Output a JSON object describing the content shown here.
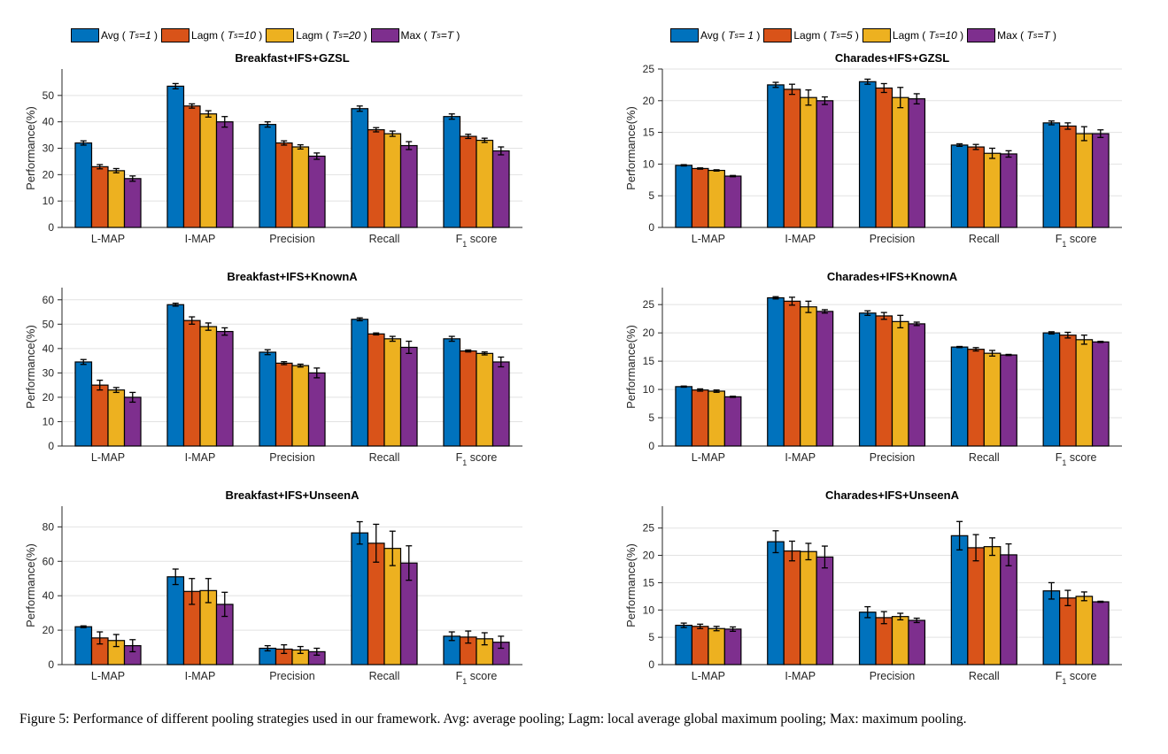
{
  "colors": {
    "avg": "#0072BD",
    "lagm_a": "#D95319",
    "lagm_b": "#EDB120",
    "max": "#7E2F8E"
  },
  "legend_left": {
    "items": [
      {
        "label": "Avg (",
        "sub_var": "T",
        "sub": "s",
        "cond": "=1",
        "close": ")"
      },
      {
        "label": "Lagm (",
        "sub_var": "T",
        "sub": "s",
        "cond": "=10",
        "close": ")"
      },
      {
        "label": "Lagm (",
        "sub_var": "T",
        "sub": "s",
        "cond": "=20",
        "close": ")"
      },
      {
        "label": "Max (",
        "sub_var": "T",
        "sub": "s",
        "cond": "=T",
        "close": ")"
      }
    ]
  },
  "legend_right": {
    "items": [
      {
        "label": "Avg (",
        "sub_var": "T",
        "sub": "s",
        "cond": "= 1",
        "close": ")"
      },
      {
        "label": "Lagm (",
        "sub_var": "T",
        "sub": "s",
        "cond": "=5",
        "close": ")"
      },
      {
        "label": "Lagm (",
        "sub_var": "T",
        "sub": "s",
        "cond": "=10",
        "close": ")"
      },
      {
        "label": "Max (",
        "sub_var": "T",
        "sub": "s",
        "cond": "=T",
        "close": ")"
      }
    ]
  },
  "caption": "Figure 5: Performance of different pooling strategies used in our framework. Avg: average pooling; Lagm: local average global maximum pooling; Max: maximum pooling.",
  "chart_data": [
    {
      "type": "bar",
      "title": "Breakfast+IFS+GZSL",
      "ylabel": "Performance(%)",
      "categories": [
        "L-MAP",
        "I-MAP",
        "Precision",
        "Recall",
        "F1 score"
      ],
      "ylim": [
        0,
        60
      ],
      "yticks": [
        0,
        10,
        20,
        30,
        40,
        50
      ],
      "series": [
        {
          "name": "Avg (Ts=1)",
          "values": [
            32,
            53.5,
            39,
            45,
            42
          ],
          "err": [
            0.8,
            1,
            1,
            1,
            1
          ]
        },
        {
          "name": "Lagm (Ts=10)",
          "values": [
            23,
            46,
            32,
            37,
            34.5
          ],
          "err": [
            0.8,
            0.8,
            0.8,
            0.8,
            0.8
          ]
        },
        {
          "name": "Lagm (Ts=20)",
          "values": [
            21.5,
            43,
            30.5,
            35.5,
            33
          ],
          "err": [
            0.8,
            1.2,
            0.8,
            1,
            0.8
          ]
        },
        {
          "name": "Max (Ts=T)",
          "values": [
            18.5,
            40,
            27,
            31,
            29
          ],
          "err": [
            1,
            2,
            1.2,
            1.5,
            1.5
          ]
        }
      ]
    },
    {
      "type": "bar",
      "title": "Charades+IFS+GZSL",
      "ylabel": "Performance(%)",
      "categories": [
        "L-MAP",
        "I-MAP",
        "Precision",
        "Recall",
        "F1 score"
      ],
      "ylim": [
        0,
        25
      ],
      "yticks": [
        0,
        5,
        10,
        15,
        20,
        25
      ],
      "series": [
        {
          "name": "Avg (Ts= 1)",
          "values": [
            9.8,
            22.5,
            23,
            13,
            16.5
          ],
          "err": [
            0.1,
            0.4,
            0.4,
            0.2,
            0.3
          ]
        },
        {
          "name": "Lagm (Ts=5)",
          "values": [
            9.3,
            21.8,
            22,
            12.7,
            16
          ],
          "err": [
            0.1,
            0.8,
            0.7,
            0.4,
            0.5
          ]
        },
        {
          "name": "Lagm (Ts=10)",
          "values": [
            9,
            20.5,
            20.5,
            11.7,
            14.8
          ],
          "err": [
            0.1,
            1.2,
            1.6,
            0.8,
            1.1
          ]
        },
        {
          "name": "Max (Ts=T)",
          "values": [
            8.1,
            20,
            20.3,
            11.6,
            14.8
          ],
          "err": [
            0.1,
            0.6,
            0.8,
            0.5,
            0.6
          ]
        }
      ]
    },
    {
      "type": "bar",
      "title": "Breakfast+IFS+KnownA",
      "ylabel": "Performance(%)",
      "categories": [
        "L-MAP",
        "I-MAP",
        "Precision",
        "Recall",
        "F1 score"
      ],
      "ylim": [
        0,
        65
      ],
      "yticks": [
        0,
        10,
        20,
        30,
        40,
        50,
        60
      ],
      "series": [
        {
          "name": "Avg (Ts=1)",
          "values": [
            34.5,
            58,
            38.5,
            52,
            44
          ],
          "err": [
            1,
            0.6,
            1,
            0.6,
            1
          ]
        },
        {
          "name": "Lagm (Ts=10)",
          "values": [
            25,
            51.5,
            34,
            46,
            39
          ],
          "err": [
            2,
            1.5,
            0.6,
            0.4,
            0.4
          ]
        },
        {
          "name": "Lagm (Ts=20)",
          "values": [
            23,
            49,
            33,
            44,
            38
          ],
          "err": [
            1,
            1.5,
            0.6,
            1,
            0.6
          ]
        },
        {
          "name": "Max (Ts=T)",
          "values": [
            20,
            47,
            30,
            40.5,
            34.5
          ],
          "err": [
            2,
            1.5,
            2,
            2.5,
            2
          ]
        }
      ]
    },
    {
      "type": "bar",
      "title": "Charades+IFS+KnownA",
      "ylabel": "Performance(%)",
      "categories": [
        "L-MAP",
        "I-MAP",
        "Precision",
        "Recall",
        "F1 score"
      ],
      "ylim": [
        0,
        28
      ],
      "yticks": [
        0,
        5,
        10,
        15,
        20,
        25
      ],
      "series": [
        {
          "name": "Avg (Ts= 1)",
          "values": [
            10.5,
            26.2,
            23.5,
            17.5,
            20
          ],
          "err": [
            0.1,
            0.2,
            0.4,
            0.1,
            0.2
          ]
        },
        {
          "name": "Lagm (Ts=5)",
          "values": [
            9.9,
            25.6,
            23,
            17.1,
            19.6
          ],
          "err": [
            0.2,
            0.7,
            0.6,
            0.3,
            0.5
          ]
        },
        {
          "name": "Lagm (Ts=10)",
          "values": [
            9.7,
            24.6,
            22,
            16.4,
            18.8
          ],
          "err": [
            0.2,
            1,
            1.1,
            0.5,
            0.8
          ]
        },
        {
          "name": "Max (Ts=T)",
          "values": [
            8.7,
            23.8,
            21.6,
            16.1,
            18.4
          ],
          "err": [
            0.1,
            0.3,
            0.3,
            0.1,
            0.1
          ]
        }
      ]
    },
    {
      "type": "bar",
      "title": "Breakfast+IFS+UnseenA",
      "ylabel": "Performance(%)",
      "categories": [
        "L-MAP",
        "I-MAP",
        "Precision",
        "Recall",
        "F1 score"
      ],
      "ylim": [
        0,
        92
      ],
      "yticks": [
        0,
        20,
        40,
        60,
        80
      ],
      "series": [
        {
          "name": "Avg (Ts=1)",
          "values": [
            22,
            51,
            9.5,
            76.5,
            16.5
          ],
          "err": [
            0.5,
            4.5,
            1.5,
            6.5,
            2.5
          ]
        },
        {
          "name": "Lagm (Ts=10)",
          "values": [
            15.5,
            42.5,
            9,
            70.5,
            16
          ],
          "err": [
            3.5,
            7.5,
            2.5,
            11,
            3.5
          ]
        },
        {
          "name": "Lagm (Ts=20)",
          "values": [
            14,
            43,
            8.5,
            67.5,
            15
          ],
          "err": [
            3.5,
            7,
            2,
            10,
            3.5
          ]
        },
        {
          "name": "Max (Ts=T)",
          "values": [
            11,
            35,
            7.5,
            59,
            13
          ],
          "err": [
            3.5,
            7,
            2,
            10,
            3.5
          ]
        }
      ]
    },
    {
      "type": "bar",
      "title": "Charades+IFS+UnseenA",
      "ylabel": "Performance(%)",
      "categories": [
        "L-MAP",
        "I-MAP",
        "Precision",
        "Recall",
        "F1 score"
      ],
      "ylim": [
        0,
        29
      ],
      "yticks": [
        0,
        5,
        10,
        15,
        20,
        25
      ],
      "series": [
        {
          "name": "Avg (Ts= 1)",
          "values": [
            7.2,
            22.5,
            9.6,
            23.6,
            13.5
          ],
          "err": [
            0.4,
            2,
            1,
            2.6,
            1.5
          ]
        },
        {
          "name": "Lagm (Ts=5)",
          "values": [
            7,
            20.8,
            8.6,
            21.4,
            12.2
          ],
          "err": [
            0.4,
            1.8,
            1.1,
            2.4,
            1.4
          ]
        },
        {
          "name": "Lagm (Ts=10)",
          "values": [
            6.6,
            20.7,
            8.8,
            21.6,
            12.5
          ],
          "err": [
            0.4,
            1.5,
            0.6,
            1.6,
            0.8
          ]
        },
        {
          "name": "Max (Ts=T)",
          "values": [
            6.5,
            19.7,
            8.1,
            20.1,
            11.5
          ],
          "err": [
            0.4,
            2,
            0.4,
            2,
            0.1
          ]
        }
      ]
    }
  ]
}
